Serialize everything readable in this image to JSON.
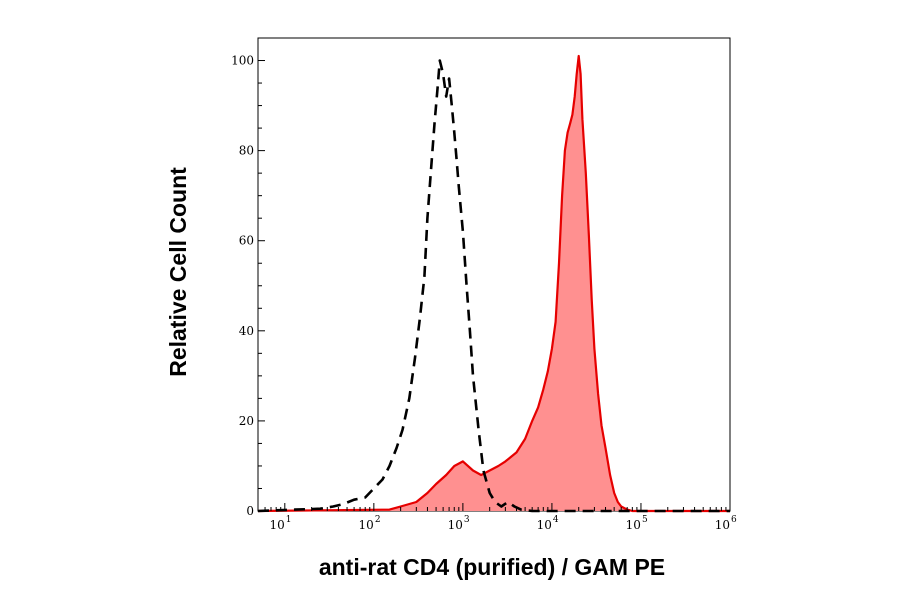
{
  "chart_data": {
    "type": "area",
    "xlabel": "anti-rat CD4 (purified) / GAM PE",
    "ylabel": "Relative Cell Count",
    "x_scale": "log",
    "xlim": [
      5,
      1000000
    ],
    "ylim": [
      0,
      105
    ],
    "x_ticks": [
      {
        "base": "10",
        "exp": "1",
        "value": 10
      },
      {
        "base": "10",
        "exp": "2",
        "value": 100
      },
      {
        "base": "10",
        "exp": "3",
        "value": 1000
      },
      {
        "base": "10",
        "exp": "4",
        "value": 10000
      },
      {
        "base": "10",
        "exp": "5",
        "value": 100000
      },
      {
        "base": "10",
        "exp": "6",
        "value": 1000000
      }
    ],
    "y_ticks": [
      "0",
      "20",
      "40",
      "60",
      "80",
      "100"
    ],
    "grid": false,
    "legend": "none",
    "series": [
      {
        "style": "dashed-black-outline",
        "color": "#000000",
        "x": [
          5,
          13,
          25,
          35,
          45,
          60,
          80,
          100,
          125,
          150,
          180,
          210,
          250,
          290,
          330,
          370,
          400,
          440,
          480,
          520,
          550,
          600,
          650,
          700,
          750,
          800,
          850,
          900,
          1000,
          1100,
          1200,
          1300,
          1500,
          1700,
          2000,
          2300,
          2700,
          3200,
          3800,
          4500,
          6000,
          1000000
        ],
        "y": [
          0,
          0.3,
          0.5,
          1,
          1.5,
          2.5,
          3,
          5,
          7,
          10,
          14,
          18,
          25,
          34,
          43,
          52,
          65,
          76,
          86,
          94,
          100,
          97,
          92,
          96,
          90,
          84,
          78,
          72,
          62,
          50,
          40,
          30,
          18,
          9,
          4,
          2,
          1,
          2,
          1,
          0.3,
          0,
          0
        ]
      },
      {
        "style": "filled-red",
        "color": "#e60000",
        "fill": "#ff9090",
        "x": [
          5,
          150,
          200,
          300,
          400,
          500,
          650,
          800,
          1000,
          1300,
          1600,
          2000,
          2500,
          3000,
          4000,
          5000,
          6000,
          7000,
          8000,
          9000,
          10000,
          11000,
          12000,
          13000,
          14000,
          15000,
          16000,
          17000,
          18000,
          19000,
          20000,
          21000,
          22000,
          24000,
          26000,
          28000,
          30000,
          33000,
          36000,
          40000,
          45000,
          50000,
          55000,
          60000,
          70000,
          80000,
          100000,
          1000000
        ],
        "y": [
          0,
          0.3,
          1,
          2,
          4,
          6,
          8,
          10,
          11,
          9,
          8,
          9,
          10,
          11,
          13,
          16,
          20,
          23,
          27,
          31,
          36,
          42,
          55,
          70,
          80,
          84,
          86,
          88,
          92,
          97,
          101,
          97,
          87,
          75,
          61,
          47,
          36,
          26,
          19,
          14,
          8,
          4,
          2,
          1,
          0.3,
          0,
          0,
          0
        ]
      }
    ]
  }
}
